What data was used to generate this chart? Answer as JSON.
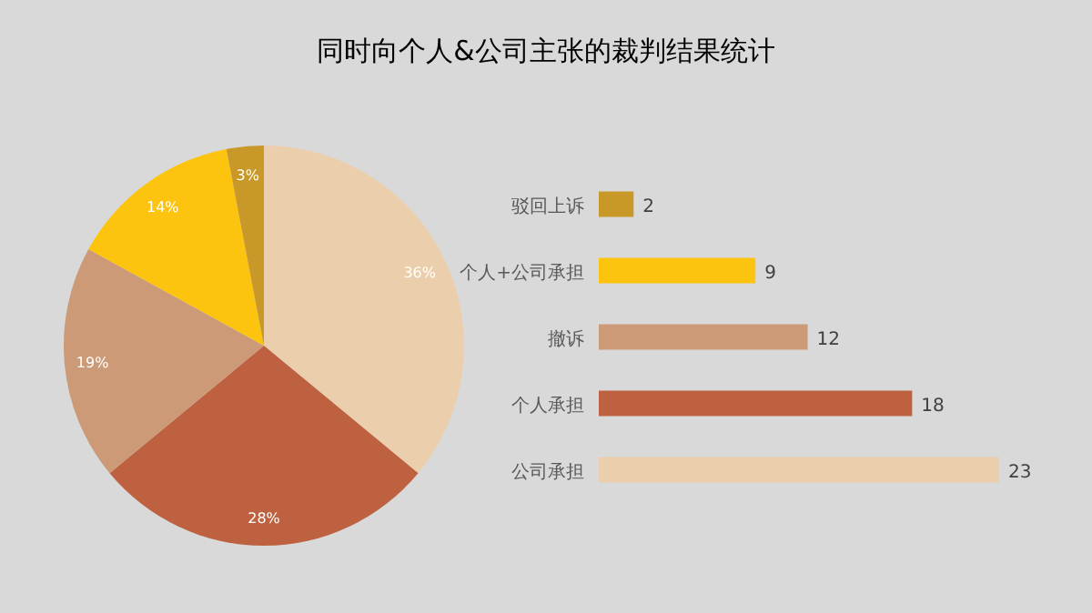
{
  "chart_data": [
    {
      "type": "pie",
      "title": "同时向个人&公司主张的裁判结果统计",
      "categories": [
        null,
        null,
        null,
        null,
        null
      ],
      "values": [
        36,
        28,
        19,
        14,
        3
      ],
      "colors": [
        "#ebcfac",
        "#bd6140",
        "#cd9a78",
        "#fdc40f",
        "#c89829"
      ],
      "value_labels": [
        "36%",
        "28%",
        "19%",
        "14%",
        "3%"
      ]
    },
    {
      "type": "bar",
      "orientation": "horizontal",
      "categories": [
        "驳回上诉",
        "个人+公司承担",
        "撤诉",
        "个人承担",
        "公司承担"
      ],
      "values": [
        2,
        9,
        12,
        18,
        23
      ],
      "colors": [
        "#c89829",
        "#fdc40f",
        "#cd9a78",
        "#bd6140",
        "#ebcfac"
      ],
      "data_labels": true
    }
  ]
}
